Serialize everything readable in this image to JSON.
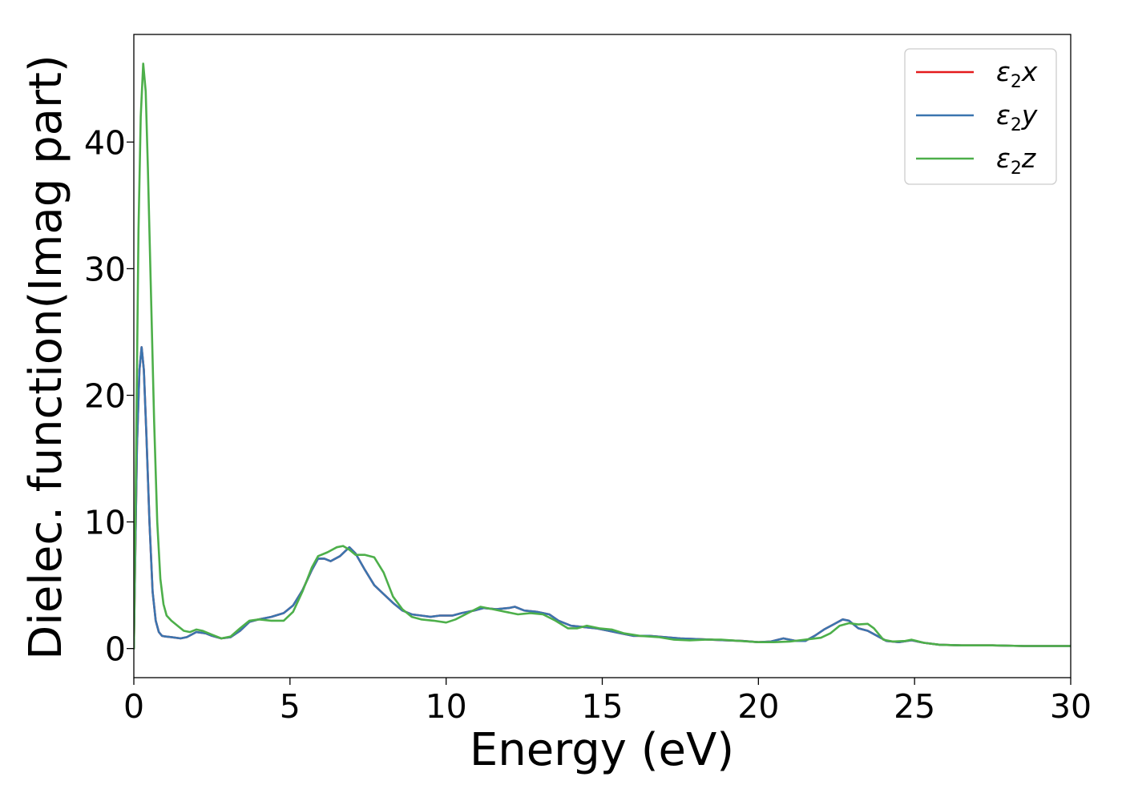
{
  "chart_data": {
    "type": "line",
    "title": "",
    "xlabel": "Energy (eV)",
    "ylabel": "Dielec. function(Imag part)",
    "xlim": [
      0,
      30
    ],
    "ylim": [
      -2.3,
      48.5
    ],
    "xticks": [
      0,
      5,
      10,
      15,
      20,
      25,
      30
    ],
    "yticks": [
      0,
      10,
      20,
      30,
      40
    ],
    "grid": false,
    "legend_position": "top-right",
    "series": [
      {
        "name": "ε2x",
        "legend_base": "ε",
        "legend_sub": "2",
        "legend_var": "x",
        "color": "#e41a1c",
        "points": [
          [
            0,
            0
          ],
          [
            0.05,
            8
          ],
          [
            0.1,
            16
          ],
          [
            0.18,
            22
          ],
          [
            0.25,
            23.8
          ],
          [
            0.32,
            22
          ],
          [
            0.4,
            17
          ],
          [
            0.5,
            10
          ],
          [
            0.6,
            4.5
          ],
          [
            0.7,
            2.2
          ],
          [
            0.8,
            1.3
          ],
          [
            0.9,
            1.0
          ],
          [
            1.0,
            0.95
          ],
          [
            1.2,
            0.9
          ],
          [
            1.5,
            0.8
          ],
          [
            1.7,
            0.9
          ],
          [
            2.0,
            1.3
          ],
          [
            2.3,
            1.2
          ],
          [
            2.5,
            1.0
          ],
          [
            2.8,
            0.8
          ],
          [
            3.1,
            0.9
          ],
          [
            3.4,
            1.4
          ],
          [
            3.7,
            2.1
          ],
          [
            4.0,
            2.3
          ],
          [
            4.4,
            2.5
          ],
          [
            4.8,
            2.8
          ],
          [
            5.1,
            3.4
          ],
          [
            5.4,
            4.6
          ],
          [
            5.7,
            6.2
          ],
          [
            5.9,
            7.1
          ],
          [
            6.1,
            7.1
          ],
          [
            6.3,
            6.9
          ],
          [
            6.6,
            7.3
          ],
          [
            6.9,
            8.0
          ],
          [
            7.1,
            7.5
          ],
          [
            7.4,
            6.2
          ],
          [
            7.7,
            5.0
          ],
          [
            8.0,
            4.3
          ],
          [
            8.3,
            3.6
          ],
          [
            8.6,
            3.0
          ],
          [
            8.9,
            2.7
          ],
          [
            9.2,
            2.6
          ],
          [
            9.5,
            2.5
          ],
          [
            9.8,
            2.6
          ],
          [
            10.2,
            2.6
          ],
          [
            10.5,
            2.8
          ],
          [
            10.9,
            3.0
          ],
          [
            11.2,
            3.2
          ],
          [
            11.6,
            3.1
          ],
          [
            12.0,
            3.2
          ],
          [
            12.2,
            3.3
          ],
          [
            12.5,
            3.0
          ],
          [
            12.9,
            2.9
          ],
          [
            13.3,
            2.7
          ],
          [
            13.6,
            2.2
          ],
          [
            14.0,
            1.8
          ],
          [
            14.4,
            1.7
          ],
          [
            14.8,
            1.6
          ],
          [
            15.2,
            1.4
          ],
          [
            15.6,
            1.2
          ],
          [
            16.0,
            1.0
          ],
          [
            16.5,
            1.0
          ],
          [
            17.0,
            0.9
          ],
          [
            17.5,
            0.8
          ],
          [
            18.0,
            0.75
          ],
          [
            18.5,
            0.7
          ],
          [
            19.0,
            0.65
          ],
          [
            19.5,
            0.6
          ],
          [
            20.0,
            0.5
          ],
          [
            20.4,
            0.55
          ],
          [
            20.8,
            0.8
          ],
          [
            21.2,
            0.6
          ],
          [
            21.5,
            0.6
          ],
          [
            21.8,
            1.0
          ],
          [
            22.1,
            1.5
          ],
          [
            22.4,
            1.9
          ],
          [
            22.7,
            2.3
          ],
          [
            22.9,
            2.2
          ],
          [
            23.2,
            1.6
          ],
          [
            23.5,
            1.4
          ],
          [
            23.8,
            1.0
          ],
          [
            24.1,
            0.6
          ],
          [
            24.5,
            0.5
          ],
          [
            24.9,
            0.65
          ],
          [
            25.3,
            0.45
          ],
          [
            25.8,
            0.3
          ],
          [
            26.5,
            0.25
          ],
          [
            27.5,
            0.25
          ],
          [
            28.5,
            0.2
          ],
          [
            30,
            0.2
          ]
        ]
      },
      {
        "name": "ε2y",
        "legend_base": "ε",
        "legend_sub": "2",
        "legend_var": "y",
        "color": "#3b75af",
        "points": [
          [
            0,
            0
          ],
          [
            0.05,
            8
          ],
          [
            0.1,
            16
          ],
          [
            0.18,
            22
          ],
          [
            0.25,
            23.8
          ],
          [
            0.32,
            22
          ],
          [
            0.4,
            17
          ],
          [
            0.5,
            10
          ],
          [
            0.6,
            4.5
          ],
          [
            0.7,
            2.2
          ],
          [
            0.8,
            1.3
          ],
          [
            0.9,
            1.0
          ],
          [
            1.0,
            0.95
          ],
          [
            1.2,
            0.9
          ],
          [
            1.5,
            0.8
          ],
          [
            1.7,
            0.9
          ],
          [
            2.0,
            1.3
          ],
          [
            2.3,
            1.2
          ],
          [
            2.5,
            1.0
          ],
          [
            2.8,
            0.8
          ],
          [
            3.1,
            0.9
          ],
          [
            3.4,
            1.4
          ],
          [
            3.7,
            2.1
          ],
          [
            4.0,
            2.3
          ],
          [
            4.4,
            2.5
          ],
          [
            4.8,
            2.8
          ],
          [
            5.1,
            3.4
          ],
          [
            5.4,
            4.6
          ],
          [
            5.7,
            6.2
          ],
          [
            5.9,
            7.1
          ],
          [
            6.1,
            7.1
          ],
          [
            6.3,
            6.9
          ],
          [
            6.6,
            7.3
          ],
          [
            6.9,
            8.0
          ],
          [
            7.1,
            7.5
          ],
          [
            7.4,
            6.2
          ],
          [
            7.7,
            5.0
          ],
          [
            8.0,
            4.3
          ],
          [
            8.3,
            3.6
          ],
          [
            8.6,
            3.0
          ],
          [
            8.9,
            2.7
          ],
          [
            9.2,
            2.6
          ],
          [
            9.5,
            2.5
          ],
          [
            9.8,
            2.6
          ],
          [
            10.2,
            2.6
          ],
          [
            10.5,
            2.8
          ],
          [
            10.9,
            3.0
          ],
          [
            11.2,
            3.2
          ],
          [
            11.6,
            3.1
          ],
          [
            12.0,
            3.2
          ],
          [
            12.2,
            3.3
          ],
          [
            12.5,
            3.0
          ],
          [
            12.9,
            2.9
          ],
          [
            13.3,
            2.7
          ],
          [
            13.6,
            2.2
          ],
          [
            14.0,
            1.8
          ],
          [
            14.4,
            1.7
          ],
          [
            14.8,
            1.6
          ],
          [
            15.2,
            1.4
          ],
          [
            15.6,
            1.2
          ],
          [
            16.0,
            1.0
          ],
          [
            16.5,
            1.0
          ],
          [
            17.0,
            0.9
          ],
          [
            17.5,
            0.8
          ],
          [
            18.0,
            0.75
          ],
          [
            18.5,
            0.7
          ],
          [
            19.0,
            0.65
          ],
          [
            19.5,
            0.6
          ],
          [
            20.0,
            0.5
          ],
          [
            20.4,
            0.55
          ],
          [
            20.8,
            0.8
          ],
          [
            21.2,
            0.6
          ],
          [
            21.5,
            0.6
          ],
          [
            21.8,
            1.0
          ],
          [
            22.1,
            1.5
          ],
          [
            22.4,
            1.9
          ],
          [
            22.7,
            2.3
          ],
          [
            22.9,
            2.2
          ],
          [
            23.2,
            1.6
          ],
          [
            23.5,
            1.4
          ],
          [
            23.8,
            1.0
          ],
          [
            24.1,
            0.6
          ],
          [
            24.5,
            0.5
          ],
          [
            24.9,
            0.65
          ],
          [
            25.3,
            0.45
          ],
          [
            25.8,
            0.3
          ],
          [
            26.5,
            0.25
          ],
          [
            27.5,
            0.25
          ],
          [
            28.5,
            0.2
          ],
          [
            30,
            0.2
          ]
        ]
      },
      {
        "name": "ε2z",
        "legend_base": "ε",
        "legend_sub": "2",
        "legend_var": "z",
        "color": "#4daf4a",
        "points": [
          [
            0,
            0
          ],
          [
            0.05,
            10
          ],
          [
            0.1,
            22
          ],
          [
            0.15,
            33
          ],
          [
            0.22,
            42
          ],
          [
            0.3,
            46.2
          ],
          [
            0.38,
            44
          ],
          [
            0.45,
            38
          ],
          [
            0.55,
            28
          ],
          [
            0.65,
            18
          ],
          [
            0.75,
            10
          ],
          [
            0.85,
            5.5
          ],
          [
            0.95,
            3.5
          ],
          [
            1.05,
            2.6
          ],
          [
            1.2,
            2.2
          ],
          [
            1.4,
            1.8
          ],
          [
            1.6,
            1.4
          ],
          [
            1.8,
            1.3
          ],
          [
            2.0,
            1.5
          ],
          [
            2.2,
            1.4
          ],
          [
            2.5,
            1.1
          ],
          [
            2.8,
            0.8
          ],
          [
            3.1,
            0.95
          ],
          [
            3.4,
            1.6
          ],
          [
            3.7,
            2.2
          ],
          [
            4.0,
            2.3
          ],
          [
            4.4,
            2.2
          ],
          [
            4.8,
            2.2
          ],
          [
            5.1,
            2.9
          ],
          [
            5.4,
            4.5
          ],
          [
            5.7,
            6.4
          ],
          [
            5.9,
            7.3
          ],
          [
            6.2,
            7.6
          ],
          [
            6.5,
            8.0
          ],
          [
            6.7,
            8.1
          ],
          [
            6.9,
            7.8
          ],
          [
            7.1,
            7.4
          ],
          [
            7.4,
            7.4
          ],
          [
            7.7,
            7.2
          ],
          [
            8.0,
            6.0
          ],
          [
            8.3,
            4.1
          ],
          [
            8.6,
            3.1
          ],
          [
            8.9,
            2.5
          ],
          [
            9.2,
            2.3
          ],
          [
            9.6,
            2.2
          ],
          [
            10.0,
            2.05
          ],
          [
            10.3,
            2.3
          ],
          [
            10.7,
            2.8
          ],
          [
            11.1,
            3.3
          ],
          [
            11.5,
            3.1
          ],
          [
            11.9,
            2.9
          ],
          [
            12.3,
            2.7
          ],
          [
            12.7,
            2.8
          ],
          [
            13.1,
            2.7
          ],
          [
            13.5,
            2.2
          ],
          [
            13.9,
            1.6
          ],
          [
            14.2,
            1.6
          ],
          [
            14.5,
            1.8
          ],
          [
            14.9,
            1.6
          ],
          [
            15.3,
            1.5
          ],
          [
            15.7,
            1.2
          ],
          [
            16.2,
            1.0
          ],
          [
            16.8,
            0.9
          ],
          [
            17.3,
            0.7
          ],
          [
            17.8,
            0.65
          ],
          [
            18.3,
            0.7
          ],
          [
            18.8,
            0.7
          ],
          [
            19.4,
            0.6
          ],
          [
            20.0,
            0.5
          ],
          [
            20.5,
            0.5
          ],
          [
            21.0,
            0.55
          ],
          [
            21.5,
            0.7
          ],
          [
            22.0,
            0.85
          ],
          [
            22.3,
            1.2
          ],
          [
            22.6,
            1.8
          ],
          [
            22.9,
            2.0
          ],
          [
            23.2,
            1.9
          ],
          [
            23.5,
            1.95
          ],
          [
            23.7,
            1.6
          ],
          [
            24.0,
            0.7
          ],
          [
            24.3,
            0.55
          ],
          [
            24.7,
            0.6
          ],
          [
            24.9,
            0.7
          ],
          [
            25.3,
            0.45
          ],
          [
            25.8,
            0.3
          ],
          [
            26.5,
            0.25
          ],
          [
            27.5,
            0.25
          ],
          [
            28.5,
            0.2
          ],
          [
            30,
            0.2
          ]
        ]
      }
    ]
  }
}
